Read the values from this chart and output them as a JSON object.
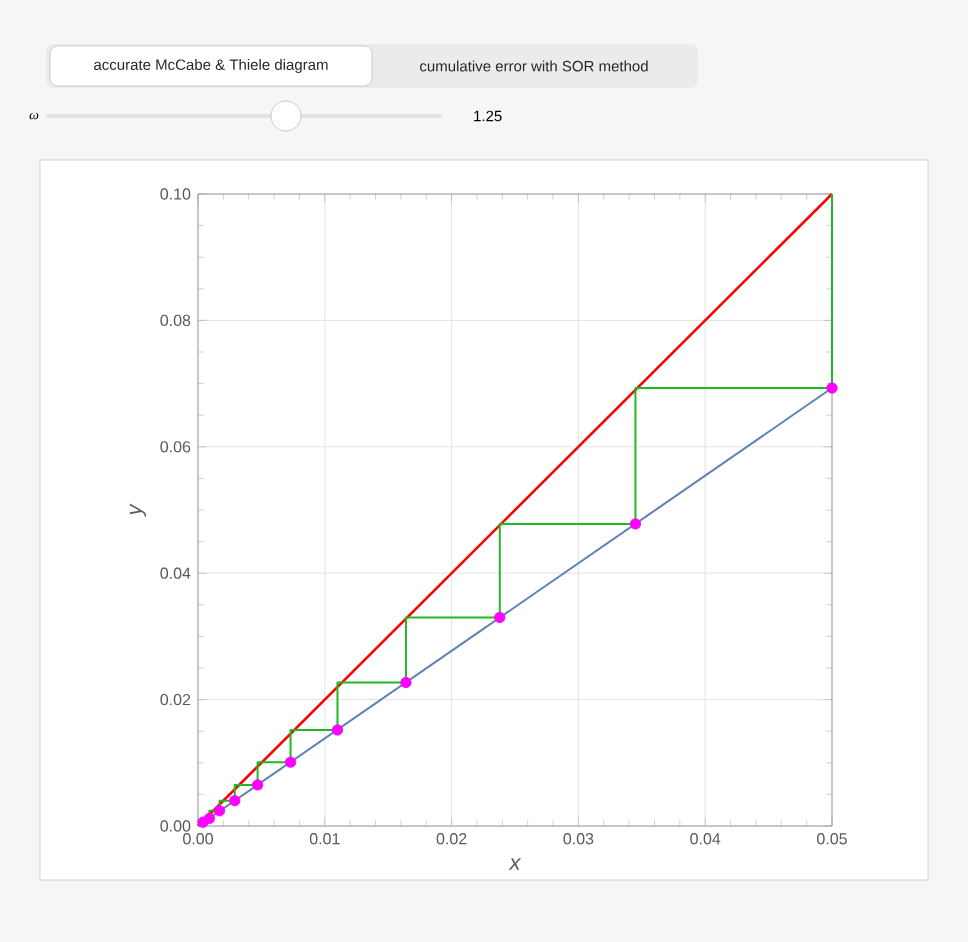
{
  "chart_data": {
    "type": "line",
    "xlabel": "x",
    "ylabel": "y",
    "annotations": [
      "accurate McCabe & Thiele diagram",
      "cumulative error with SOR method",
      "ω",
      "1.25"
    ],
    "xlim": [
      0,
      0.05
    ],
    "ylim": [
      0,
      0.1
    ],
    "xticks": [
      {
        "value": 0,
        "label": "0.00"
      },
      {
        "value": 0.01,
        "label": "0.01"
      },
      {
        "value": 0.02,
        "label": "0.02"
      },
      {
        "value": 0.03,
        "label": "0.03"
      },
      {
        "value": 0.04,
        "label": "0.04"
      },
      {
        "value": 0.05,
        "label": "0.05"
      }
    ],
    "yticks": [
      {
        "value": 0,
        "label": "0.00"
      },
      {
        "value": 0.02,
        "label": "0.02"
      },
      {
        "value": 0.04,
        "label": "0.04"
      },
      {
        "value": 0.06,
        "label": "0.06"
      },
      {
        "value": 0.08,
        "label": "0.08"
      },
      {
        "value": 0.1,
        "label": "0.10"
      }
    ],
    "grid": true,
    "series": [
      {
        "color": "#ff0000",
        "x": [
          0,
          0.05
        ],
        "values": [
          0,
          0.1
        ]
      },
      {
        "color": "#5e81b5",
        "x": [
          0,
          0.05
        ],
        "values": [
          0,
          0.0693
        ]
      },
      {
        "color": "#22b822",
        "x": [
          0.05,
          0.05,
          0.0345,
          0.0345,
          0.0238,
          0.0238,
          0.0164,
          0.0164,
          0.011,
          0.011,
          0.0073,
          0.0073,
          0.0047,
          0.0047,
          0.0029,
          0.0029,
          0.0017,
          0.0017,
          0.0009,
          0.0009,
          0.0004,
          0.0004
        ],
        "values": [
          0.1,
          0.0693,
          0.0693,
          0.0478,
          0.0478,
          0.033,
          0.033,
          0.0227,
          0.0227,
          0.0152,
          0.0152,
          0.0101,
          0.0101,
          0.0065,
          0.0065,
          0.004,
          0.004,
          0.0024,
          0.0024,
          0.0012,
          0.0012,
          0.0006
        ]
      },
      {
        "type": "scatter",
        "color": "#ff00ff",
        "marker": "circle",
        "x": [
          0.05,
          0.0345,
          0.0238,
          0.0164,
          0.011,
          0.0073,
          0.0047,
          0.0029,
          0.0017,
          0.0009,
          0.0004
        ],
        "values": [
          0.0693,
          0.0478,
          0.033,
          0.0227,
          0.0152,
          0.0101,
          0.0065,
          0.004,
          0.0024,
          0.0012,
          0.0006
        ]
      }
    ]
  }
}
